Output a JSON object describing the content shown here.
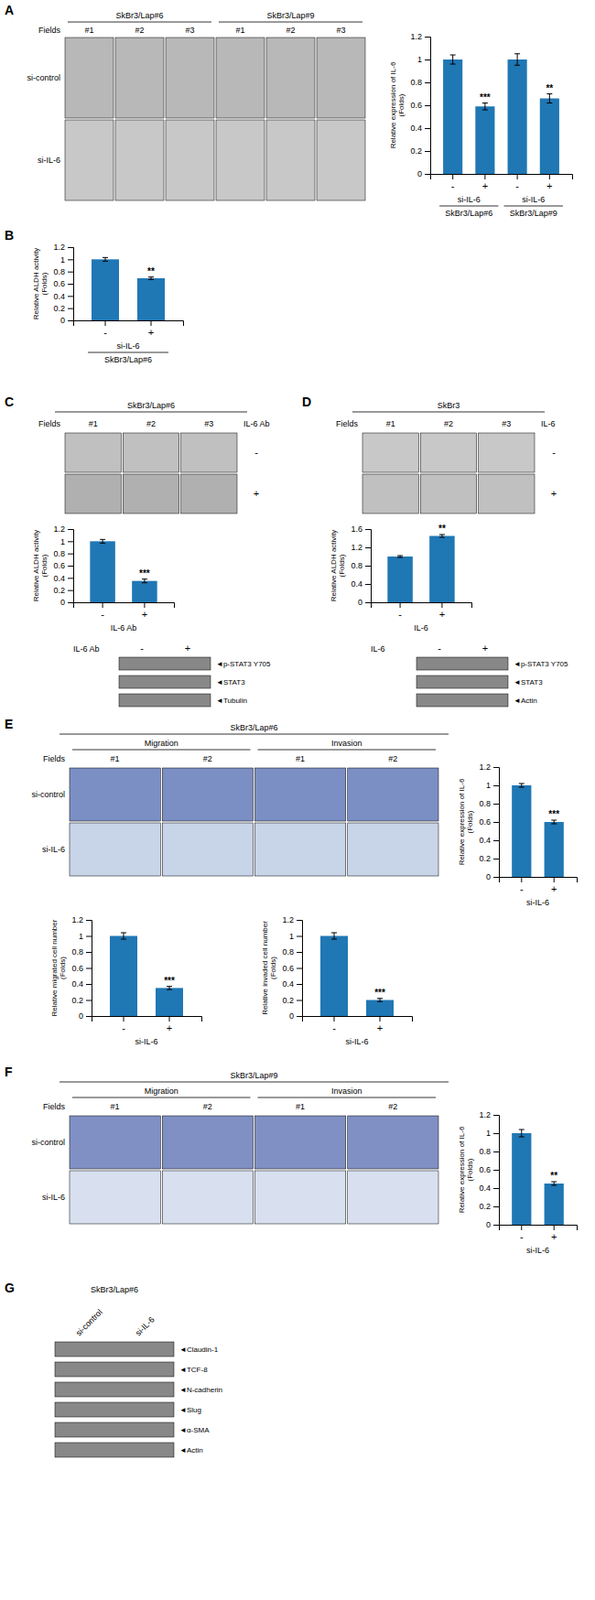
{
  "chart_data": [
    {
      "type": "micrograph",
      "annotations": [
        {
          "text": "A"
        }
      ],
      "groups": [
        "SkBr3/Lap#6",
        "SkBr3/Lap#9"
      ],
      "xlabel": "Fields",
      "categories": [
        "#1",
        "#2",
        "#3",
        "#1",
        "#2",
        "#3"
      ],
      "rows": [
        "si-control",
        "si-IL-6"
      ],
      "colors": [
        "#b8b8b8",
        "#c8c8c8"
      ]
    },
    {
      "type": "bar",
      "categories": [
        "-",
        "+",
        "-",
        "+"
      ],
      "values": [
        1.0,
        0.59,
        1.0,
        0.66
      ],
      "errors": [
        0.04,
        0.03,
        0.05,
        0.04
      ],
      "annotations": [
        {
          "text": "***",
          "index": 1
        },
        {
          "text": "**",
          "index": 3
        }
      ],
      "ylabel": "Relative expression of IL-6\n(Folds)",
      "ylim": [
        0,
        1.2
      ],
      "yticks": [
        0,
        0.2,
        0.4,
        0.6,
        0.8,
        1,
        1.2
      ],
      "xlabel": "si-IL-6",
      "group_labels": [
        "SkBr3/Lap#6",
        "SkBr3/Lap#9"
      ]
    },
    {
      "type": "bar",
      "categories": [
        "-",
        "+"
      ],
      "values": [
        1.0,
        0.69
      ],
      "errors": [
        0.03,
        0.02
      ],
      "annotations": [
        {
          "text": "B"
        },
        {
          "text": "**",
          "index": 1
        }
      ],
      "ylabel": "Relative ALDH activity\n(Folds)",
      "ylim": [
        0,
        1.2
      ],
      "yticks": [
        0,
        0.2,
        0.4,
        0.6,
        0.8,
        1,
        1.2
      ],
      "xlabel": "si-IL-6",
      "group_labels": [
        "SkBr3/Lap#6"
      ]
    },
    {
      "type": "micrograph",
      "annotations": [
        {
          "text": "C"
        }
      ],
      "title": "SkBr3/Lap#6",
      "xlabel": "Fields",
      "categories": [
        "#1",
        "#2",
        "#3"
      ],
      "ylabel": "IL-6 Ab",
      "rows": [
        "-",
        "+"
      ],
      "colors": [
        "#c0c0c0",
        "#b0b0b0"
      ]
    },
    {
      "type": "bar",
      "categories": [
        "-",
        "+"
      ],
      "values": [
        1.0,
        0.35
      ],
      "errors": [
        0.03,
        0.03
      ],
      "annotations": [
        {
          "text": "***",
          "index": 1
        }
      ],
      "ylabel": "Relative ALDH activity\n(Folds)",
      "ylim": [
        0,
        1.2
      ],
      "yticks": [
        0,
        0.2,
        0.4,
        0.6,
        0.8,
        1,
        1.2
      ],
      "xlabel": "IL-6 Ab"
    },
    {
      "type": "blot",
      "xlabel": "IL-6 Ab",
      "categories": [
        "-",
        "+"
      ],
      "rows": [
        "◄p-STAT3 Y705",
        "◄STAT3",
        "◄Tubulin"
      ]
    },
    {
      "type": "micrograph",
      "annotations": [
        {
          "text": "D"
        }
      ],
      "title": "SkBr3",
      "xlabel": "Fields",
      "categories": [
        "#1",
        "#2",
        "#3"
      ],
      "ylabel": "IL-6",
      "rows": [
        "-",
        "+"
      ],
      "colors": [
        "#c8c8c8",
        "#c0c0c0"
      ]
    },
    {
      "type": "bar",
      "categories": [
        "-",
        "+"
      ],
      "values": [
        1.0,
        1.45
      ],
      "errors": [
        0.02,
        0.03
      ],
      "annotations": [
        {
          "text": "**",
          "index": 1
        }
      ],
      "ylabel": "Relative ALDH activity\n(Folds)",
      "ylim": [
        0,
        1.6
      ],
      "yticks": [
        0,
        0.4,
        0.8,
        1.2,
        1.6
      ],
      "xlabel": "IL-6"
    },
    {
      "type": "blot",
      "xlabel": "IL-6",
      "categories": [
        "-",
        "+"
      ],
      "rows": [
        "◄p-STAT3 Y705",
        "◄STAT3",
        "◄Actin"
      ]
    },
    {
      "type": "micrograph",
      "annotations": [
        {
          "text": "E"
        }
      ],
      "title": "SkBr3/Lap#6",
      "groups": [
        "Migration",
        "Invasion"
      ],
      "xlabel": "Fields",
      "categories": [
        "#1",
        "#2",
        "#1",
        "#2"
      ],
      "rows": [
        "si-control",
        "si-IL-6"
      ],
      "colors": [
        "#7b8fc4",
        "#c8d4e8"
      ]
    },
    {
      "type": "bar",
      "categories": [
        "-",
        "+"
      ],
      "values": [
        1.0,
        0.6
      ],
      "errors": [
        0.02,
        0.02
      ],
      "annotations": [
        {
          "text": "***",
          "index": 1
        }
      ],
      "ylabel": "Relative expression of IL-6\n(Folds)",
      "ylim": [
        0,
        1.2
      ],
      "yticks": [
        0,
        0.2,
        0.4,
        0.6,
        0.8,
        1,
        1.2
      ],
      "xlabel": "si-IL-6"
    },
    {
      "type": "bar",
      "categories": [
        "-",
        "+"
      ],
      "values": [
        1.0,
        0.35
      ],
      "errors": [
        0.04,
        0.02
      ],
      "annotations": [
        {
          "text": "***",
          "index": 1
        }
      ],
      "ylabel": "Relative migrated cell number\n(Folds)",
      "ylim": [
        0,
        1.2
      ],
      "yticks": [
        0,
        0.2,
        0.4,
        0.6,
        0.8,
        1,
        1.2
      ],
      "xlabel": "si-IL-6"
    },
    {
      "type": "bar",
      "categories": [
        "-",
        "+"
      ],
      "values": [
        1.0,
        0.2
      ],
      "errors": [
        0.04,
        0.02
      ],
      "annotations": [
        {
          "text": "***",
          "index": 1
        }
      ],
      "ylabel": "Relative invaded cell number\n(Folds)",
      "ylim": [
        0,
        1.2
      ],
      "yticks": [
        0,
        0.2,
        0.4,
        0.6,
        0.8,
        1,
        1.2
      ],
      "xlabel": "si-IL-6"
    },
    {
      "type": "micrograph",
      "annotations": [
        {
          "text": "F"
        }
      ],
      "title": "SkBr3/Lap#9",
      "groups": [
        "Migration",
        "Invasion"
      ],
      "xlabel": "Fields",
      "categories": [
        "#1",
        "#2",
        "#1",
        "#2"
      ],
      "rows": [
        "si-control",
        "si-IL-6"
      ],
      "colors": [
        "#8090c4",
        "#d8e0f0"
      ]
    },
    {
      "type": "bar",
      "categories": [
        "-",
        "+"
      ],
      "values": [
        1.0,
        0.45
      ],
      "errors": [
        0.04,
        0.02
      ],
      "annotations": [
        {
          "text": "**",
          "index": 1
        }
      ],
      "ylabel": "Relative expression of IL-6\n(Folds)",
      "ylim": [
        0,
        1.2
      ],
      "yticks": [
        0,
        0.2,
        0.4,
        0.6,
        0.8,
        1,
        1.2
      ],
      "xlabel": "si-IL-6"
    },
    {
      "type": "blot",
      "annotations": [
        {
          "text": "G"
        }
      ],
      "title": "SkBr3/Lap#6",
      "categories": [
        "si-control",
        "si-IL-6"
      ],
      "rows": [
        "◄Claudin-1",
        "◄TCF-8",
        "◄N-cadherin",
        "◄Slug",
        "◄α-SMA",
        "◄Actin"
      ]
    }
  ]
}
